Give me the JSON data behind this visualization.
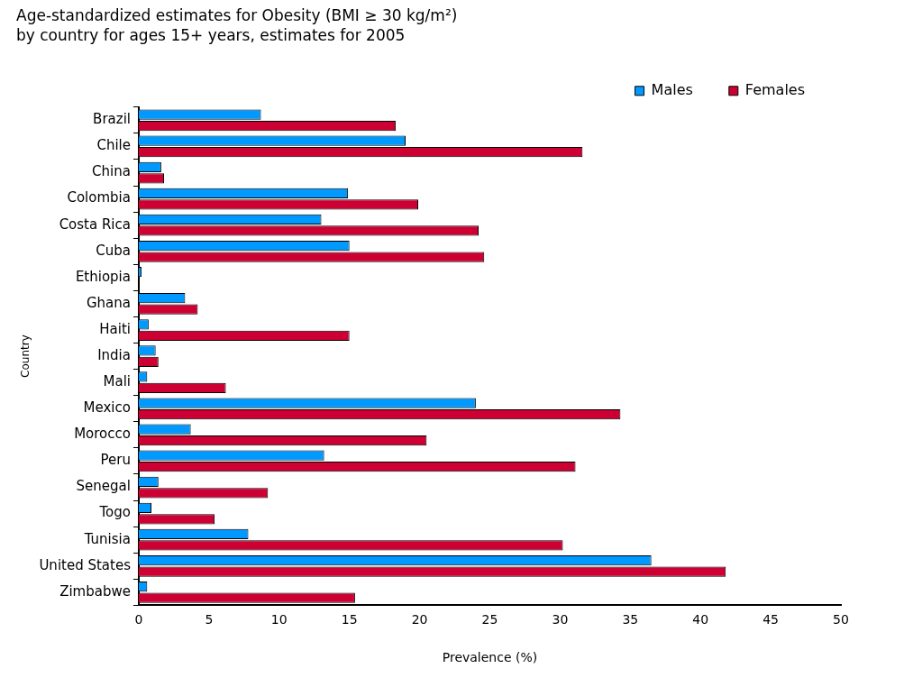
{
  "chart_data": {
    "type": "bar",
    "orientation": "horizontal",
    "title": "Age-standardized estimates for Obesity (BMI ≥ 30 kg/m²)",
    "subtitle": "by country for ages 15+ years, estimates for 2005",
    "xlabel": "Prevalence (%)",
    "ylabel": "Country",
    "categories": [
      "Brazil",
      "Chile",
      "China",
      "Colombia",
      "Costa Rica",
      "Cuba",
      "Ethiopia",
      "Ghana",
      "Haiti",
      "India",
      "Mali",
      "Mexico",
      "Morocco",
      "Peru",
      "Senegal",
      "Togo",
      "Tunisia",
      "United States",
      "Zimbabwe"
    ],
    "series": [
      {
        "name": "Males",
        "color": "#0099ff",
        "values": [
          8.7,
          19.0,
          1.6,
          14.9,
          13.0,
          15.0,
          0.2,
          3.3,
          0.7,
          1.2,
          0.6,
          24.0,
          3.7,
          13.2,
          1.4,
          0.9,
          7.8,
          36.5,
          0.6
        ]
      },
      {
        "name": "Females",
        "color": "#cc0033",
        "values": [
          18.3,
          31.6,
          1.8,
          19.9,
          24.2,
          24.6,
          0,
          4.2,
          15.0,
          1.4,
          6.2,
          34.3,
          20.5,
          31.1,
          9.2,
          5.4,
          30.2,
          41.8,
          15.4
        ]
      }
    ],
    "xlim": [
      0,
      50
    ],
    "xticks": [
      0,
      5,
      10,
      15,
      20,
      25,
      30,
      35,
      40,
      45,
      50
    ],
    "grid": false,
    "legend": "top right"
  }
}
